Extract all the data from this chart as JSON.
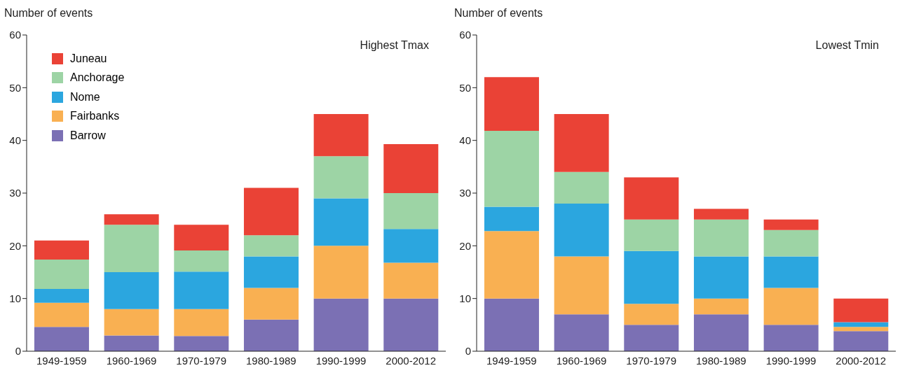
{
  "chart_data": [
    {
      "type": "bar",
      "title": "Highest Tmax",
      "ylabel": "Number of events",
      "categories": [
        "1949-1959",
        "1960-1969",
        "1970-1979",
        "1980-1989",
        "1990-1999",
        "2000-2012"
      ],
      "stacked": true,
      "legend": "top left",
      "grid": false,
      "ylim": [
        0,
        60
      ],
      "yticks": [
        0,
        10,
        20,
        30,
        40,
        50,
        60
      ],
      "series": [
        {
          "name": "Barrow",
          "color": "#7b70b4",
          "values": [
            4.6,
            3,
            2.9,
            6,
            10,
            10
          ]
        },
        {
          "name": "Fairbanks",
          "color": "#f9b052",
          "values": [
            4.6,
            5,
            5.1,
            6,
            10,
            6.8
          ]
        },
        {
          "name": "Nome",
          "color": "#2ba6df",
          "values": [
            2.6,
            7,
            7.1,
            6,
            9,
            6.4
          ]
        },
        {
          "name": "Anchorage",
          "color": "#9dd4a5",
          "values": [
            5.6,
            9,
            4,
            4,
            8,
            6.8
          ]
        },
        {
          "name": "Juneau",
          "color": "#ea4236",
          "values": [
            3.6,
            2,
            4.9,
            9,
            8,
            9.3
          ]
        }
      ]
    },
    {
      "type": "bar",
      "title": "Lowest Tmin",
      "ylabel": "Number of events",
      "categories": [
        "1949-1959",
        "1960-1969",
        "1970-1979",
        "1980-1989",
        "1990-1999",
        "2000-2012"
      ],
      "stacked": true,
      "legend": false,
      "grid": false,
      "ylim": [
        0,
        60
      ],
      "yticks": [
        0,
        10,
        20,
        30,
        40,
        50,
        60
      ],
      "series": [
        {
          "color": "#7b70b4",
          "values": [
            10,
            7,
            5,
            7,
            5,
            3.8
          ]
        },
        {
          "color": "#f9b052",
          "values": [
            12.8,
            11,
            4,
            3,
            7,
            0.8
          ]
        },
        {
          "color": "#2ba6df",
          "values": [
            4.6,
            10,
            10,
            8,
            6,
            0.9
          ]
        },
        {
          "color": "#9dd4a5",
          "values": [
            14.4,
            6,
            6,
            7,
            5,
            0
          ]
        },
        {
          "color": "#ea4236",
          "values": [
            10.2,
            11,
            8,
            2,
            2,
            4.5
          ]
        }
      ]
    }
  ]
}
